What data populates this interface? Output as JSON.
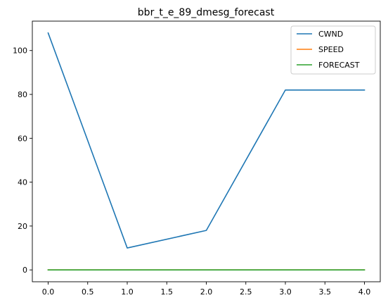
{
  "chart_data": {
    "type": "line",
    "title": "bbr_t_e_89_dmesg_forecast",
    "xlabel": "",
    "ylabel": "",
    "x": [
      0,
      1,
      2,
      3,
      4
    ],
    "xlim": [
      -0.2,
      4.2
    ],
    "ylim": [
      -5.4,
      113.4
    ],
    "xticks": [
      0.0,
      0.5,
      1.0,
      1.5,
      2.0,
      2.5,
      3.0,
      3.5,
      4.0
    ],
    "xtick_labels": [
      "0.0",
      "0.5",
      "1.0",
      "1.5",
      "2.0",
      "2.5",
      "3.0",
      "3.5",
      "4.0"
    ],
    "yticks": [
      0,
      20,
      40,
      60,
      80,
      100
    ],
    "ytick_labels": [
      "0",
      "20",
      "40",
      "60",
      "80",
      "100"
    ],
    "grid": false,
    "legend_position": "top-right",
    "series": [
      {
        "name": "CWND",
        "color": "#1f77b4",
        "values": [
          108,
          10,
          18,
          82,
          82
        ]
      },
      {
        "name": "SPEED",
        "color": "#ff7f0e",
        "values": [
          0,
          0,
          0,
          0,
          0
        ]
      },
      {
        "name": "FORECAST",
        "color": "#2ca02c",
        "values": [
          0,
          0,
          0,
          0,
          0
        ]
      }
    ]
  }
}
